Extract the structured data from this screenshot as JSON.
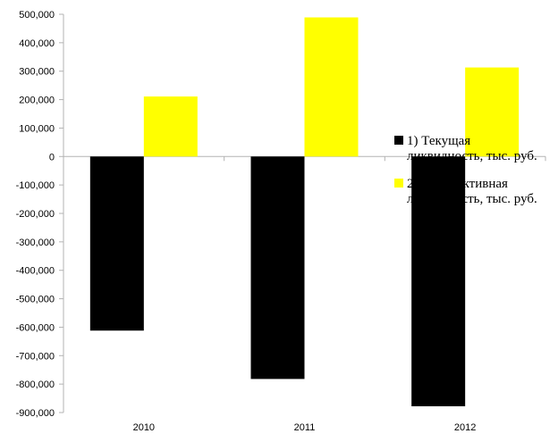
{
  "chart_data": {
    "type": "bar",
    "categories": [
      "2010",
      "2011",
      "2012"
    ],
    "series": [
      {
        "name": "1) Текущая ликвидность, тыс. руб.",
        "legend_lines": [
          "1) Текущая",
          "ликвидность, тыс. руб."
        ],
        "color": "#000000",
        "values": [
          -612000,
          -782000,
          -878000
        ]
      },
      {
        "name": "2) Перспективная ликвидность, тыс. руб.",
        "legend_lines": [
          "2) Перспективная",
          "ликвидность, тыс. руб."
        ],
        "color": "#ffff00",
        "values": [
          211000,
          489000,
          313000
        ]
      }
    ],
    "ylim": [
      -900000,
      500000
    ],
    "yticks": [
      500000,
      400000,
      300000,
      200000,
      100000,
      0,
      -100000,
      -200000,
      -300000,
      -400000,
      -500000,
      -600000,
      -700000,
      -800000,
      -900000
    ],
    "ytick_labels": [
      "500,000",
      "400,000",
      "300,000",
      "200,000",
      "100,000",
      "0",
      "-100,000",
      "-200,000",
      "-300,000",
      "-400,000",
      "-500,000",
      "-600,000",
      "-700,000",
      "-800,000",
      "-900,000"
    ],
    "title": "",
    "xlabel": "",
    "ylabel": "",
    "grid": false,
    "legend_position": "right"
  }
}
